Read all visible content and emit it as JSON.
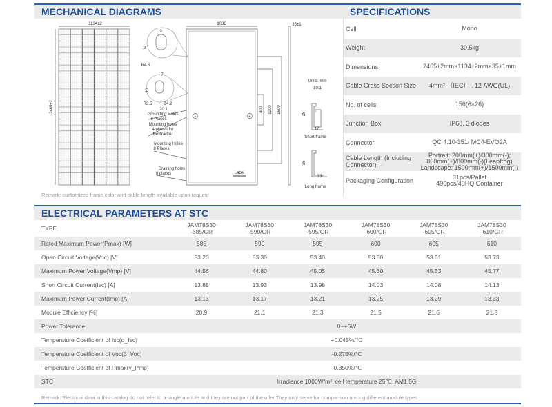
{
  "mechanical": {
    "title": "MECHANICAL DIAGRAMS",
    "labels": {
      "width": "1134±2",
      "height": "2465±2",
      "back_width": "1086",
      "thickness": "35±1",
      "d9": "9",
      "d14": "14",
      "r45": "R4.5",
      "d7": "7",
      "d10": "10",
      "r35": "R3.5",
      "phi": "Ø4.2",
      "scale20": "20:1",
      "ground1": "Grounding Holes",
      "ground2": "6 Places",
      "mount1": "Mounting holes",
      "mount2": "4 places for",
      "mount3": "Nextracker",
      "mh1": "Mounting Holes",
      "mh2": "8 Places",
      "dr1": "Draining holes",
      "dr2": "8 places",
      "label": "Label",
      "d400": "400",
      "d1200": "1200",
      "d1600": "1600",
      "units": "Units: mm",
      "scale10": "10:1",
      "sf35": "35",
      "sf17": "17",
      "short_frame": "Short frame",
      "lf35": "35",
      "lf33": "33",
      "long_frame": "Long frame",
      "minus": "−",
      "plus": "+"
    },
    "remark": "Remark: customized frame color and cable length available upon request"
  },
  "specifications": {
    "title": "SPECIFICATIONS",
    "rows": [
      {
        "key": "Cell",
        "value": [
          "Mono"
        ]
      },
      {
        "key": "Weight",
        "value": [
          "30.5kg"
        ]
      },
      {
        "key": "Dimensions",
        "value": [
          "2465±2mm×1134±2mm×35±1mm"
        ]
      },
      {
        "key": "Cable Cross Section Size",
        "value": [
          "4mm² （IEC） , 12 AWG(UL)"
        ]
      },
      {
        "key": "No. of cells",
        "value": [
          "156(6×26)"
        ]
      },
      {
        "key": "Junction Box",
        "value": [
          "IP68, 3 diodes"
        ]
      },
      {
        "key": "Connector",
        "value": [
          "QC 4.10-351/ MC4-EVO2A"
        ]
      },
      {
        "key": "Cable Length (Including Connector)",
        "value": [
          "Portrait: 200mm(+)/300mm(-);",
          "800mm(+)/800mm(-)(Leapfrog)",
          "Landscape: 1500mm(+)/1500mm(-)"
        ]
      },
      {
        "key": "Packaging Configuration",
        "value": [
          "31pcs/Pallet",
          "496pcs/40HQ Container"
        ]
      }
    ]
  },
  "electrical": {
    "title": "ELECTRICAL PARAMETERS AT STC",
    "type_label": "TYPE",
    "types": [
      [
        "JAM78S30",
        "-585/GR"
      ],
      [
        "JAM78S30",
        "-590/GR"
      ],
      [
        "JAM78S30",
        "-595/GR"
      ],
      [
        "JAM78S30",
        "-600/GR"
      ],
      [
        "JAM78S30",
        "-605/GR"
      ],
      [
        "JAM78S30",
        "-610/GR"
      ]
    ],
    "rows": [
      {
        "key": "Rated Maximum Power(Pmax) [W]",
        "values": [
          "585",
          "590",
          "595",
          "600",
          "605",
          "610"
        ]
      },
      {
        "key": "Open Circuit Voltage(Voc) [V]",
        "values": [
          "53.20",
          "53.30",
          "53.40",
          "53.50",
          "53.61",
          "53.73"
        ]
      },
      {
        "key": "Maximum Power Voltage(Vmp) [V]",
        "values": [
          "44.56",
          "44.80",
          "45.05",
          "45.30",
          "45.53",
          "45.77"
        ]
      },
      {
        "key": "Short Circuit Current(Isc) [A]",
        "values": [
          "13.88",
          "13.93",
          "13.98",
          "14.03",
          "14.08",
          "14.13"
        ]
      },
      {
        "key": "Maximum Power Current(Imp) [A]",
        "values": [
          "13.13",
          "13.17",
          "13.21",
          "13.25",
          "13.29",
          "13.33"
        ]
      },
      {
        "key": "Module Efficiency [%]",
        "values": [
          "20.9",
          "21.1",
          "21.3",
          "21.5",
          "21.6",
          "21.8"
        ]
      }
    ],
    "shared": [
      {
        "key": "Power Tolerance",
        "value": "0~+5W"
      },
      {
        "key": "Temperature Coefficient of Isc(α_Isc)",
        "value": "+0.045%/℃"
      },
      {
        "key": "Temperature Coefficient of Voc(β_Voc)",
        "value": "-0.275%/℃"
      },
      {
        "key": "Temperature Coefficient of Pmax(γ_Pmp)",
        "value": "-0.350%/℃"
      },
      {
        "key": "STC",
        "value": "Irradiance 1000W/m²,  cell temperature 25℃, AM1.5G"
      }
    ],
    "remark": "Remark: Electrical data in this catalog do not refer to a single module and they are not part of the offer.They only serve for comparison among different module types."
  },
  "colors": {
    "accent": "#2a63a8",
    "header_bg": "#ebebeb",
    "title": "#1d4f9c"
  }
}
